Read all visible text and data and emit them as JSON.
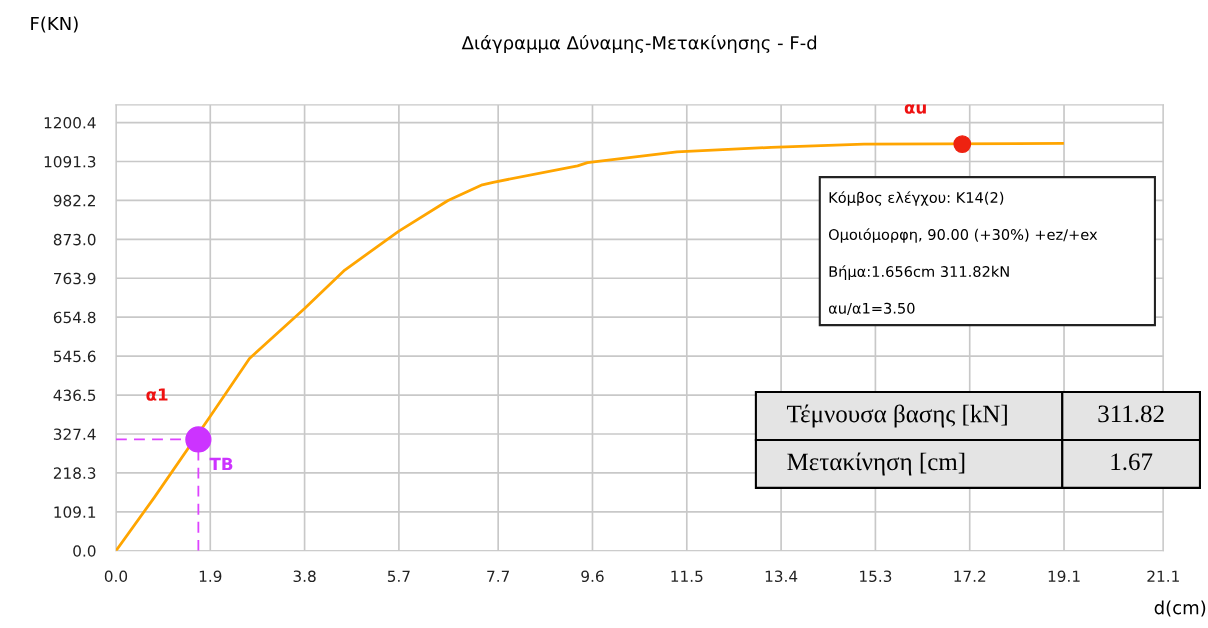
{
  "chart_data": {
    "type": "line",
    "title": "Διάγραμμα Δύναμης-Μετακίνησης - F-d",
    "xlabel": "d(cm)",
    "ylabel": "F(KN)",
    "xlim": [
      0,
      21.1
    ],
    "ylim": [
      0,
      1250
    ],
    "xticks": [
      {
        "value": 0,
        "label": "0.0"
      },
      1.9,
      3.8,
      5.7,
      7.7,
      9.6,
      11.5,
      13.4,
      15.3,
      17.2,
      19.1,
      21.1
    ],
    "yticks": [
      {
        "value": 0,
        "label": "0.0"
      },
      109.1,
      218.3,
      327.4,
      436.5,
      545.6,
      654.8,
      763.9,
      {
        "value": 873.0,
        "label": "873.0"
      },
      982.2,
      1091.3,
      1200.4
    ],
    "grid": true,
    "marker": "none",
    "line_style": "solid",
    "series": [
      {
        "color": "#ffa500",
        "x": [
          0,
          0.77,
          1.9,
          2.69,
          3.8,
          4.61,
          5.7,
          6.69,
          7.38,
          7.6,
          9.3,
          9.5,
          11.3,
          13.2,
          15.07,
          19.07
        ],
        "values": [
          0,
          149,
          377,
          539,
          679,
          787,
          896,
          982,
          1026,
          1033,
          1079,
          1088,
          1118,
          1131,
          1140,
          1142
        ]
      },
      {
        "type": "line",
        "color": "#dd44ff",
        "line_style": "dashed",
        "x": [
          0,
          1.66
        ],
        "values": [
          312,
          312
        ]
      },
      {
        "type": "line",
        "color": "#dd44ff",
        "line_style": "dashed",
        "x": [
          1.66,
          1.66
        ],
        "values": [
          0,
          312
        ]
      },
      {
        "type": "scatter",
        "color": "#cc33ff",
        "marker": "circle",
        "x": [
          1.66
        ],
        "values": [
          312
        ]
      },
      {
        "type": "scatter",
        "color": "#ee2211",
        "marker": "circle",
        "x": [
          17.05
        ],
        "values": [
          1140
        ]
      }
    ],
    "annotations": [
      "α1",
      "TB",
      "αu",
      "Κόμβος ελέγχου: K14(2)",
      "Ομοιόμορφη, 90.00 (+30%) +ez/+ex",
      "Βήμα:1.656cm 311.82kN",
      "αu/α1=3.50",
      "Τέμνουσα βασης [kN]",
      "311.82",
      "Μετακίνηση [cm]",
      "1.67"
    ]
  }
}
